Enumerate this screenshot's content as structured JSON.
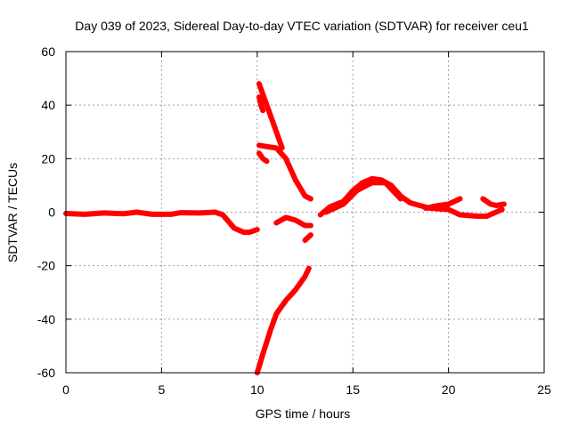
{
  "chart_data": {
    "type": "scatter",
    "title": "Day 039 of 2023, Sidereal Day-to-day VTEC variation (SDTVAR) for receiver ceu1",
    "xlabel": "GPS time / hours",
    "ylabel": "SDTVAR / TECUs",
    "xlim": [
      0,
      25
    ],
    "ylim": [
      -60,
      60
    ],
    "xticks": [
      0,
      5,
      10,
      15,
      20,
      25
    ],
    "yticks": [
      -60,
      -40,
      -20,
      0,
      20,
      40,
      60
    ],
    "grid": true,
    "legend": "none",
    "color": "#ff0000",
    "series": [
      {
        "name": "track-1",
        "points": [
          [
            0.0,
            -0.5
          ],
          [
            1.0,
            -0.8
          ],
          [
            2.0,
            -0.3
          ],
          [
            3.0,
            -0.6
          ],
          [
            3.7,
            0.0
          ],
          [
            4.5,
            -0.8
          ],
          [
            5.5,
            -0.8
          ],
          [
            6.0,
            -0.2
          ],
          [
            7.0,
            -0.3
          ],
          [
            7.8,
            0.0
          ],
          [
            8.2,
            -1.0
          ],
          [
            8.5,
            -3.5
          ],
          [
            8.8,
            -6.0
          ],
          [
            9.3,
            -7.5
          ],
          [
            9.6,
            -7.5
          ],
          [
            9.8,
            -7.0
          ],
          [
            10.0,
            -6.5
          ]
        ]
      },
      {
        "name": "track-2",
        "points": [
          [
            10.1,
            48.0
          ],
          [
            10.3,
            44.0
          ],
          [
            10.6,
            38.0
          ],
          [
            11.0,
            30.0
          ],
          [
            11.3,
            24.0
          ]
        ]
      },
      {
        "name": "track-3",
        "points": [
          [
            10.1,
            43.0
          ],
          [
            10.2,
            40.0
          ],
          [
            10.3,
            38.0
          ]
        ]
      },
      {
        "name": "track-4",
        "points": [
          [
            10.1,
            22.0
          ],
          [
            10.3,
            20.0
          ],
          [
            10.5,
            19.0
          ]
        ]
      },
      {
        "name": "track-5",
        "points": [
          [
            10.1,
            25.0
          ],
          [
            10.5,
            24.5
          ],
          [
            11.0,
            24.0
          ],
          [
            11.5,
            20.0
          ],
          [
            12.0,
            12.0
          ],
          [
            12.5,
            6.0
          ],
          [
            12.8,
            5.0
          ]
        ]
      },
      {
        "name": "track-6",
        "points": [
          [
            11.0,
            -4.0
          ],
          [
            11.5,
            -2.0
          ],
          [
            12.0,
            -3.0
          ],
          [
            12.5,
            -5.0
          ],
          [
            12.8,
            -5.0
          ]
        ]
      },
      {
        "name": "track-7",
        "points": [
          [
            12.5,
            -10.5
          ],
          [
            12.8,
            -8.5
          ]
        ]
      },
      {
        "name": "track-8",
        "points": [
          [
            10.0,
            -60.0
          ],
          [
            10.3,
            -53.0
          ],
          [
            10.7,
            -44.0
          ],
          [
            11.0,
            -38.0
          ],
          [
            11.5,
            -33.0
          ],
          [
            12.0,
            -29.0
          ],
          [
            12.5,
            -24.0
          ],
          [
            12.7,
            -21.0
          ]
        ]
      },
      {
        "name": "track-9",
        "points": [
          [
            13.3,
            -1.0
          ],
          [
            13.8,
            2.0
          ],
          [
            14.5,
            4.0
          ],
          [
            15.0,
            8.0
          ],
          [
            15.5,
            11.0
          ],
          [
            16.0,
            12.5
          ],
          [
            16.5,
            12.0
          ],
          [
            17.0,
            10.0
          ],
          [
            17.5,
            6.0
          ],
          [
            18.0,
            3.5
          ],
          [
            19.0,
            1.5
          ],
          [
            20.0,
            1.0
          ],
          [
            20.6,
            -1.0
          ],
          [
            21.5,
            -1.5
          ],
          [
            22.0,
            -1.5
          ],
          [
            22.8,
            1.0
          ]
        ]
      },
      {
        "name": "track-10",
        "points": [
          [
            13.6,
            0.0
          ],
          [
            14.5,
            3.0
          ],
          [
            15.2,
            8.0
          ],
          [
            16.0,
            11.0
          ],
          [
            16.7,
            11.0
          ],
          [
            17.5,
            5.0
          ]
        ]
      },
      {
        "name": "track-11",
        "points": [
          [
            18.8,
            1.5
          ],
          [
            19.5,
            2.5
          ],
          [
            20.0,
            3.0
          ],
          [
            20.6,
            5.0
          ]
        ]
      },
      {
        "name": "track-12",
        "points": [
          [
            21.8,
            5.0
          ],
          [
            22.2,
            3.0
          ],
          [
            22.5,
            2.5
          ],
          [
            22.9,
            3.0
          ]
        ]
      }
    ]
  }
}
